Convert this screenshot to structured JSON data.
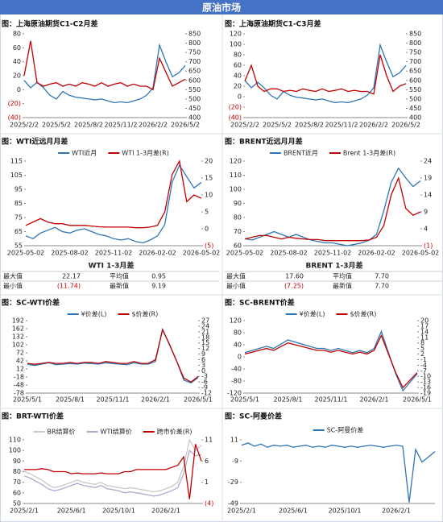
{
  "header": "原油市场",
  "chart_data": [
    {
      "type": "line",
      "title": "图：上海原油期货C1-C2月差",
      "categories": [
        "2025/2/2",
        null,
        null,
        null,
        null,
        "2025/5/2",
        null,
        null,
        null,
        null,
        "2025/8/2",
        null,
        null,
        null,
        null,
        "2025/11/2",
        null,
        null,
        null,
        null,
        "2026/2/2",
        null,
        null,
        null,
        null,
        "2026/5/2"
      ],
      "series": [
        {
          "color": "#2e75b6",
          "axis": "y2",
          "values": [
            600,
            560,
            590,
            560,
            520,
            500,
            540,
            520,
            510,
            505,
            500,
            495,
            500,
            490,
            480,
            485,
            480,
            490,
            500,
            520,
            560,
            790,
            700,
            620,
            640,
            680
          ]
        },
        {
          "color": "#c00000",
          "values": [
            20,
            70,
            10,
            5,
            8,
            10,
            5,
            8,
            5,
            10,
            8,
            5,
            10,
            5,
            8,
            10,
            5,
            8,
            5,
            5,
            0,
            45,
            25,
            5,
            10,
            15
          ]
        }
      ],
      "ylim": [
        -40,
        80
      ],
      "yticks": [
        80,
        60,
        40,
        20,
        0,
        {
          "value": -20,
          "label": "(20)"
        },
        {
          "value": -40,
          "label": "(40)"
        }
      ],
      "y2lim": [
        400,
        850
      ],
      "y2ticks": [
        850,
        800,
        750,
        700,
        650,
        600,
        550,
        500,
        450,
        400
      ]
    },
    {
      "type": "line",
      "title": "图：上海原油期货C1-C3月差",
      "categories": [
        "2025/2/2",
        null,
        null,
        null,
        null,
        "2025/5/2",
        null,
        null,
        null,
        null,
        "2025/8/2",
        null,
        null,
        null,
        null,
        "2025/11/2",
        null,
        null,
        null,
        null,
        "2026/2/2",
        null,
        null,
        null,
        null,
        "2026/5/2"
      ],
      "series": [
        {
          "color": "#2e75b6",
          "axis": "y2",
          "values": [
            600,
            560,
            590,
            560,
            520,
            500,
            540,
            520,
            510,
            505,
            500,
            495,
            500,
            490,
            480,
            485,
            480,
            490,
            500,
            520,
            560,
            790,
            700,
            620,
            640,
            680
          ]
        },
        {
          "color": "#c00000",
          "values": [
            30,
            60,
            20,
            10,
            15,
            15,
            10,
            12,
            10,
            15,
            12,
            10,
            15,
            10,
            12,
            15,
            10,
            12,
            10,
            10,
            5,
            80,
            40,
            10,
            20,
            25
          ]
        }
      ],
      "ylim": [
        -40,
        120
      ],
      "yticks": [
        120,
        100,
        80,
        60,
        40,
        20,
        0,
        {
          "value": -20,
          "label": "(20)"
        },
        {
          "value": -40,
          "label": "(40)"
        }
      ],
      "y2lim": [
        400,
        850
      ],
      "y2ticks": [
        850,
        800,
        750,
        700,
        650,
        600,
        550,
        500,
        450,
        400
      ]
    },
    {
      "type": "line",
      "title": "图：WTI近远月月差",
      "legend": "top",
      "categories": [
        "2025-05-02",
        null,
        null,
        null,
        null,
        null,
        "2025-08-02",
        null,
        null,
        null,
        null,
        null,
        "2025-11-02",
        null,
        null,
        null,
        null,
        null,
        "2026-02-02",
        null,
        null,
        null,
        null,
        null,
        "2026-05-02"
      ],
      "series": [
        {
          "name": "WTI近月",
          "color": "#2e75b6",
          "values": [
            62,
            60,
            64,
            66,
            68,
            65,
            64,
            66,
            67,
            65,
            63,
            62,
            60,
            59,
            60,
            58,
            57,
            59,
            62,
            70,
            100,
            112,
            104,
            96,
            100
          ]
        },
        {
          "name": "WTI 1-3月差(R)",
          "color": "#c00000",
          "axis": "y2",
          "values": [
            1,
            2,
            3,
            2,
            1.5,
            1.5,
            1,
            1,
            1,
            0.8,
            0.6,
            0.5,
            0.5,
            0.5,
            0.5,
            0.3,
            0.3,
            0.5,
            1,
            5,
            16,
            20,
            8,
            10,
            9
          ]
        }
      ],
      "ylim": [
        55,
        115
      ],
      "yticks": [
        115,
        105,
        95,
        85,
        75,
        65,
        55
      ],
      "y2lim": [
        -5,
        20
      ],
      "y2ticks": [
        20,
        15,
        10,
        5,
        0,
        {
          "value": -5,
          "label": "(5)"
        }
      ]
    },
    {
      "type": "line",
      "title": "图：BRENT近远月月差",
      "legend": "top",
      "categories": [
        "2025-05-02",
        null,
        null,
        null,
        null,
        null,
        "2025-08-02",
        null,
        null,
        null,
        null,
        null,
        "2025-11-02",
        null,
        null,
        null,
        null,
        null,
        "2026-02-02",
        null,
        null,
        null,
        null,
        null,
        "2026-05-02"
      ],
      "series": [
        {
          "name": "BRENT近月",
          "color": "#2e75b6",
          "values": [
            65,
            64,
            66,
            68,
            70,
            68,
            66,
            68,
            66,
            64,
            63,
            62,
            62,
            61,
            60,
            61,
            62,
            64,
            68,
            85,
            105,
            115,
            108,
            102,
            106
          ]
        },
        {
          "name": "Brent 1-3月差(R)",
          "color": "#c00000",
          "axis": "y2",
          "values": [
            1,
            1.5,
            2,
            2,
            1.5,
            1,
            1.5,
            1.2,
            1,
            0.8,
            0.8,
            0.5,
            0.5,
            0.5,
            0.5,
            0.5,
            0.5,
            0.7,
            1.5,
            5,
            14,
            19,
            10,
            8,
            9
          ]
        }
      ],
      "ylim": [
        60,
        120
      ],
      "yticks": [
        120,
        110,
        100,
        90,
        80,
        70,
        60
      ],
      "y2lim": [
        -1,
        24
      ],
      "y2ticks": [
        24,
        19,
        14,
        9,
        4,
        {
          "value": -1,
          "label": "(1)"
        }
      ]
    },
    {
      "type": "line",
      "title": "图：SC-WTI价差",
      "legend": "top",
      "categories": [
        "2025/5/1",
        null,
        null,
        null,
        null,
        null,
        "2025/8/1",
        null,
        null,
        null,
        null,
        null,
        "2025/11/1",
        null,
        null,
        null,
        null,
        null,
        "2026/2/1",
        null,
        null,
        null,
        null,
        null,
        "2026/5/1"
      ],
      "series": [
        {
          "name": "¥价差(L)",
          "color": "#2e75b6",
          "values": [
            30,
            25,
            30,
            35,
            28,
            30,
            32,
            30,
            34,
            32,
            30,
            35,
            32,
            30,
            28,
            35,
            30,
            30,
            40,
            160,
            100,
            40,
            -30,
            -40,
            -20
          ]
        },
        {
          "name": "$价差(R)",
          "color": "#c00000",
          "axis": "y2",
          "values": [
            4,
            3.5,
            4,
            4.5,
            4,
            4,
            4.5,
            4,
            4.5,
            4.5,
            4,
            5,
            4.5,
            4,
            4,
            5,
            4,
            4,
            6,
            22,
            14,
            5,
            -4,
            -6,
            -3
          ]
        }
      ],
      "ylim": [
        -78,
        192
      ],
      "yticks": [
        192,
        162,
        132,
        102,
        72,
        42,
        12,
        -18,
        -48,
        -78
      ],
      "y2lim": [
        -12,
        27
      ],
      "y2ticks": [
        27,
        24,
        21,
        18,
        15,
        12,
        9,
        6,
        3,
        0,
        -3,
        -6,
        -9,
        -12
      ]
    },
    {
      "type": "line",
      "title": "图：SC-BRENT价差",
      "legend": "top",
      "categories": [
        "2025/5/1",
        null,
        null,
        null,
        null,
        null,
        "2025/8/1",
        null,
        null,
        null,
        null,
        null,
        "2025/11/1",
        null,
        null,
        null,
        null,
        null,
        "2026/2/1",
        null,
        null,
        null,
        null,
        null,
        "2026/5/1"
      ],
      "series": [
        {
          "name": "¥价差(L)",
          "color": "#2e75b6",
          "values": [
            14,
            21,
            28,
            35,
            28,
            42,
            56,
            49,
            42,
            35,
            28,
            28,
            21,
            28,
            21,
            14,
            21,
            14,
            28,
            84,
            14,
            -56,
            -112,
            -84,
            -56
          ]
        },
        {
          "name": "$价差(R)",
          "color": "#c00000",
          "axis": "y2",
          "values": [
            2,
            3,
            4,
            5,
            4,
            6,
            8,
            7,
            6,
            5,
            4,
            4,
            3,
            4,
            3,
            2,
            3,
            2,
            4,
            12,
            2,
            -8,
            -16,
            -12,
            -8
          ]
        }
      ],
      "ylim": [
        -120,
        120
      ],
      "yticks": [
        120,
        80,
        40,
        0,
        -40,
        -80,
        -120
      ],
      "y2lim": [
        -19,
        20
      ],
      "y2ticks": [
        20,
        17,
        14,
        11,
        8,
        5,
        2,
        -1,
        -4,
        -7,
        -10,
        -13,
        -16,
        -19
      ]
    },
    {
      "type": "line",
      "title": "图：BRT-WTI价差",
      "legend": "top",
      "categories": [
        "2025/2/1",
        null,
        null,
        null,
        null,
        null,
        null,
        null,
        "2025/6/1",
        null,
        null,
        null,
        null,
        null,
        null,
        null,
        "2025/10/1",
        null,
        null,
        null,
        null,
        null,
        null,
        null,
        "2026/2/1",
        null,
        null,
        null,
        null,
        null,
        null
      ],
      "series": [
        {
          "name": "BR结算价",
          "color": "#c8c8c8",
          "values": [
            80,
            78,
            75,
            72,
            68,
            65,
            66,
            68,
            70,
            72,
            70,
            69,
            68,
            70,
            67,
            66,
            65,
            64,
            65,
            64,
            63,
            62,
            61,
            62,
            64,
            66,
            70,
            85,
            110,
            100,
            105
          ]
        },
        {
          "name": "WTI结算价",
          "color": "#a9abcf",
          "values": [
            76,
            74,
            71,
            68,
            64,
            62,
            63,
            65,
            67,
            69,
            67,
            66,
            65,
            67,
            64,
            63,
            62,
            60,
            61,
            60,
            59,
            58,
            57,
            58,
            60,
            62,
            65,
            78,
            100,
            95,
            96
          ]
        },
        {
          "name": "跨市价差(R)",
          "color": "#c00000",
          "axis": "y2",
          "values": [
            4,
            4,
            4,
            4.2,
            4,
            3.5,
            3.5,
            3.5,
            3,
            3.2,
            3,
            3,
            3,
            3.2,
            3,
            3,
            3,
            3.5,
            3.5,
            4,
            4,
            4,
            4,
            4,
            4,
            4.5,
            5,
            7,
            -3,
            10,
            6
          ]
        }
      ],
      "ylim": [
        50,
        110
      ],
      "yticks": [
        110,
        100,
        90,
        80,
        70,
        60,
        50
      ],
      "y2lim": [
        -4,
        11
      ],
      "y2ticks": [
        11,
        6,
        1,
        {
          "value": -4,
          "label": "(4)"
        }
      ]
    },
    {
      "type": "line",
      "title": "图：SC-阿曼价差",
      "legend": "top",
      "categories": [
        "2025/2/1",
        null,
        null,
        null,
        null,
        null,
        null,
        null,
        "2025/6/1",
        null,
        null,
        null,
        null,
        null,
        null,
        null,
        "2025/10/1",
        null,
        null,
        null,
        null,
        null,
        null,
        null,
        "2026/2/1",
        null,
        null,
        null,
        null,
        null,
        null
      ],
      "series": [
        {
          "name": "SC-阿曼价差",
          "color": "#2e75b6",
          "values": [
            6,
            8,
            5,
            7,
            4,
            6,
            5,
            6,
            4,
            5,
            6,
            4,
            5,
            4,
            6,
            5,
            4,
            5,
            4,
            5,
            6,
            5,
            4,
            5,
            6,
            5,
            -48,
            2,
            -10,
            -5,
            0
          ]
        }
      ],
      "ylim": [
        -49,
        11
      ],
      "yticks": [
        11,
        -9,
        -29,
        -49
      ]
    }
  ],
  "tables": [
    {
      "title": "WTI 1-3月差",
      "rows": [
        [
          "最大值",
          "22.17",
          "平均值",
          "0.95"
        ],
        [
          "最小值",
          "(11.74)",
          "最新值",
          "9.19"
        ]
      ]
    },
    {
      "title": "BRENT 1-3月差",
      "rows": [
        [
          "最大值",
          "17.60",
          "平均值",
          "7.70"
        ],
        [
          "最小值",
          "(7.25)",
          "最新值",
          "7.70"
        ]
      ]
    }
  ]
}
